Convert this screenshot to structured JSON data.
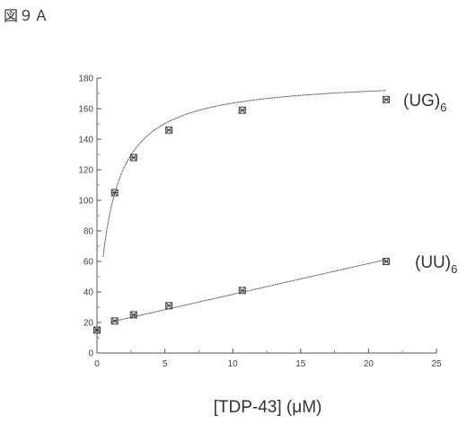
{
  "figure_label": "図９Ａ",
  "chart_data": {
    "type": "line",
    "title": "",
    "xlabel": "[TDP-43] (μM)",
    "ylabel": "",
    "xlim": [
      0,
      25
    ],
    "ylim": [
      0,
      180
    ],
    "x_ticks": [
      0,
      5,
      10,
      15,
      20,
      25
    ],
    "y_ticks": [
      0,
      20,
      40,
      60,
      80,
      100,
      120,
      140,
      160,
      180
    ],
    "x_tick_labels": [
      "0",
      "5",
      "10",
      "15",
      "20",
      "25"
    ],
    "y_tick_labels": [
      "0",
      "20",
      "40",
      "60",
      "80",
      "100",
      "120",
      "140",
      "160",
      "180"
    ],
    "grid": false,
    "legend": "inline-right",
    "series": [
      {
        "name": "(UG)6",
        "label_main": "(UG)",
        "label_sub": "6",
        "fit": "hyperbolic",
        "x": [
          0,
          1.3,
          2.7,
          5.3,
          10.7,
          21.3
        ],
        "y": [
          15,
          105,
          128,
          146,
          159,
          166
        ],
        "color": "#555555"
      },
      {
        "name": "(UU)6",
        "label_main": "(UU)",
        "label_sub": "6",
        "fit": "linear",
        "x": [
          0,
          1.3,
          2.7,
          5.3,
          10.7,
          21.3
        ],
        "y": [
          15,
          21,
          25,
          31,
          41,
          60
        ],
        "color": "#555555"
      }
    ]
  }
}
